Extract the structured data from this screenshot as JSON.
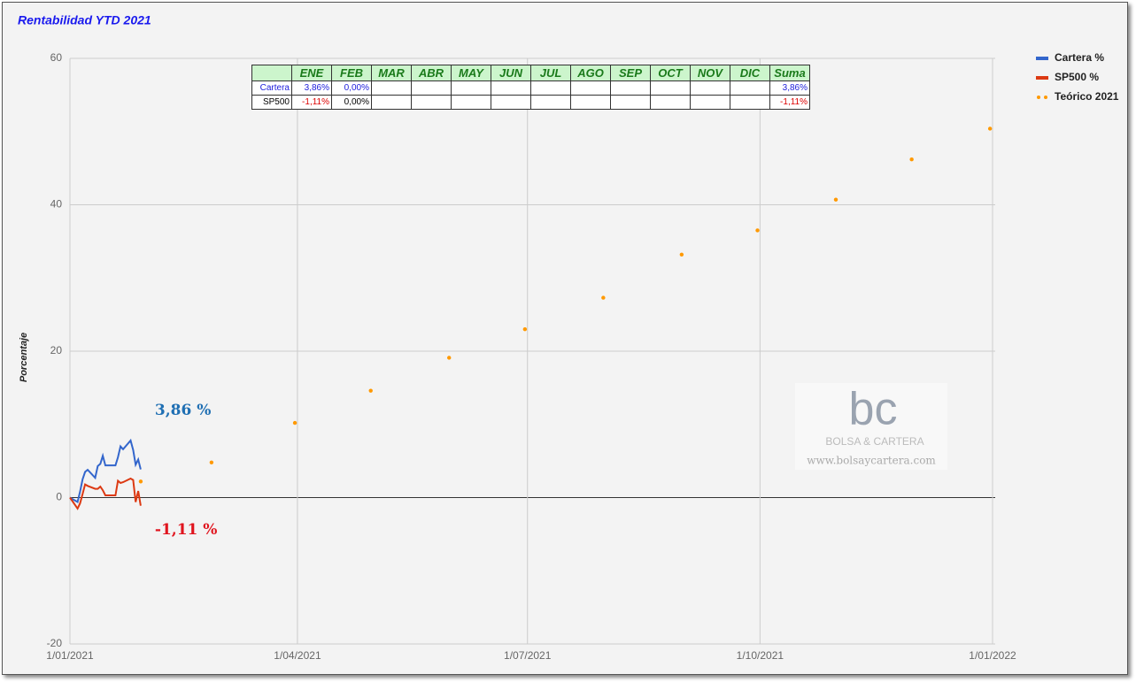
{
  "chart_data": {
    "type": "line",
    "title": "Rentabilidad YTD 2021",
    "y_label": "Porcentaje",
    "xlim": [
      "2021-01-01",
      "2022-01-01"
    ],
    "xticks": [
      {
        "value": "2021-01-01",
        "label": "1/01/2021"
      },
      {
        "value": "2021-04-01",
        "label": "1/04/2021"
      },
      {
        "value": "2021-07-01",
        "label": "1/07/2021"
      },
      {
        "value": "2021-10-01",
        "label": "1/10/2021"
      },
      {
        "value": "2022-01-01",
        "label": "1/01/2022"
      }
    ],
    "ylim": [
      -20,
      60
    ],
    "yticks": [
      -20,
      0,
      20,
      40,
      60
    ],
    "grid": true,
    "legend": "top-right",
    "series": [
      {
        "name": "Cartera %",
        "color": "#3366cc",
        "mode": "line",
        "x": [
          "2021-01-01",
          "2021-01-04",
          "2021-01-05",
          "2021-01-06",
          "2021-01-07",
          "2021-01-08",
          "2021-01-11",
          "2021-01-12",
          "2021-01-13",
          "2021-01-14",
          "2021-01-15",
          "2021-01-18",
          "2021-01-19",
          "2021-01-20",
          "2021-01-21",
          "2021-01-22",
          "2021-01-25",
          "2021-01-26",
          "2021-01-27",
          "2021-01-28",
          "2021-01-29"
        ],
        "values": [
          0,
          -0.6,
          0.8,
          2.5,
          3.5,
          3.8,
          2.7,
          4.3,
          4.6,
          5.7,
          4.4,
          4.4,
          4.4,
          5.5,
          7.0,
          6.6,
          7.8,
          6.5,
          4.5,
          5.2,
          3.86
        ]
      },
      {
        "name": "SP500 %",
        "color": "#dc3912",
        "mode": "line",
        "x": [
          "2021-01-01",
          "2021-01-04",
          "2021-01-05",
          "2021-01-06",
          "2021-01-07",
          "2021-01-08",
          "2021-01-11",
          "2021-01-12",
          "2021-01-13",
          "2021-01-14",
          "2021-01-15",
          "2021-01-18",
          "2021-01-19",
          "2021-01-20",
          "2021-01-21",
          "2021-01-22",
          "2021-01-25",
          "2021-01-26",
          "2021-01-27",
          "2021-01-28",
          "2021-01-29"
        ],
        "values": [
          0,
          -1.5,
          -0.8,
          0.5,
          1.8,
          1.6,
          1.2,
          1.2,
          1.5,
          1.0,
          0.3,
          0.3,
          0.3,
          2.3,
          2.0,
          2.1,
          2.6,
          2.4,
          -0.6,
          0.9,
          -1.11
        ]
      },
      {
        "name": "Teórico 2021",
        "color": "#ff9900",
        "mode": "markers",
        "x": [
          "2021-01-29",
          "2021-02-26",
          "2021-03-31",
          "2021-04-30",
          "2021-05-31",
          "2021-06-30",
          "2021-07-31",
          "2021-08-31",
          "2021-09-30",
          "2021-10-31",
          "2021-11-30",
          "2021-12-31"
        ],
        "values": [
          2.2,
          4.8,
          10.2,
          14.6,
          19.1,
          23.0,
          27.3,
          33.2,
          36.5,
          40.7,
          46.2,
          50.4
        ]
      }
    ],
    "annotations": [
      {
        "text": "3,86 %",
        "series": 0,
        "value": 3.86,
        "color": "#1f6fb3"
      },
      {
        "text": "-1,11 %",
        "series": 1,
        "value": -1.11,
        "color": "#e0141e"
      }
    ]
  },
  "table": {
    "columns": [
      "ENE",
      "FEB",
      "MAR",
      "ABR",
      "MAY",
      "JUN",
      "JUL",
      "AGO",
      "SEP",
      "OCT",
      "NOV",
      "DIC",
      "Suma"
    ],
    "rows": [
      {
        "label": "Cartera",
        "color": "#2020dd",
        "months": [
          "3,86%",
          "0,00%"
        ],
        "total": "3,86%"
      },
      {
        "label": "SP500",
        "color": "#dd0000",
        "months": [
          "-1,11%",
          "0,00%"
        ],
        "total": "-1,11%"
      }
    ]
  },
  "watermark": {
    "logo": "bc",
    "name": "BOLSA & CARTERA",
    "url": "www.bolsaycartera.com"
  }
}
